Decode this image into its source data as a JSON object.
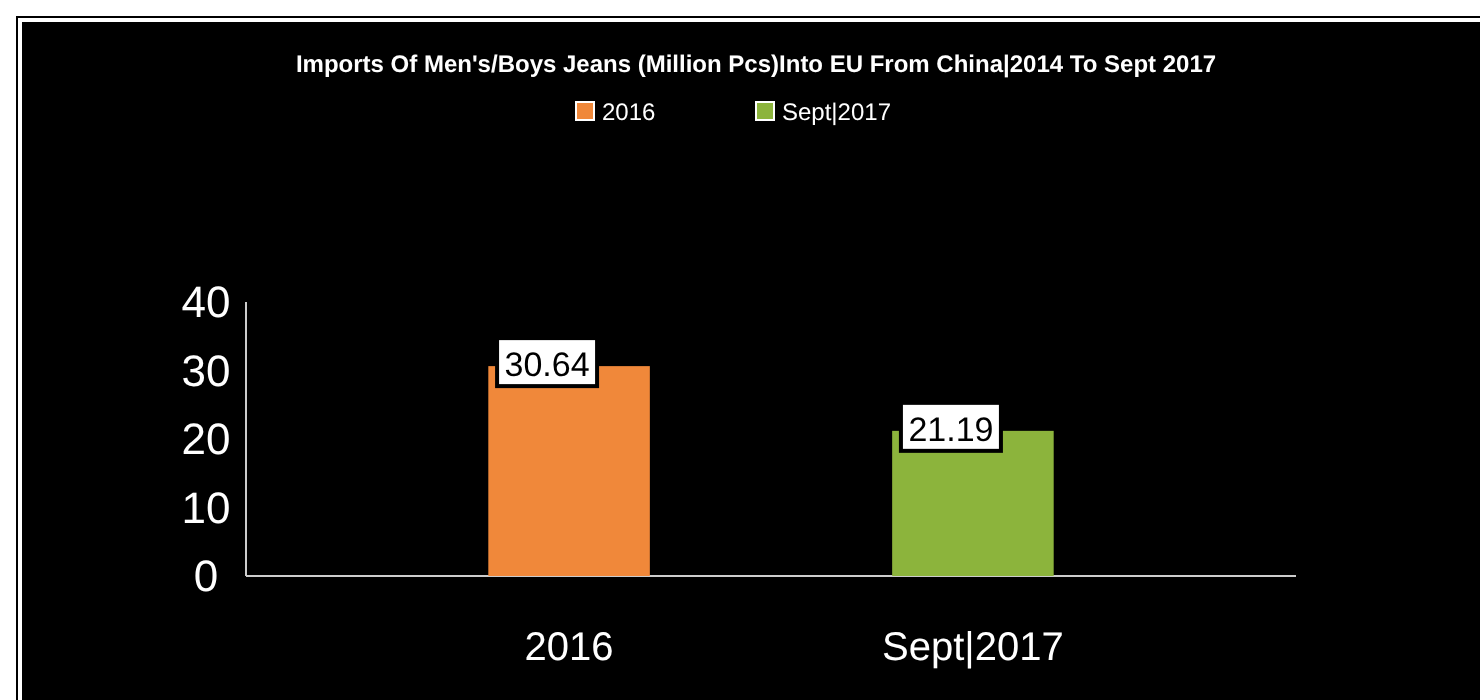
{
  "chart_data": {
    "type": "bar",
    "title": "Imports Of Men's/Boys Jeans (Million Pcs)Into EU From China|2014 To Sept 2017",
    "categories": [
      "2016",
      "Sept|2017"
    ],
    "series": [
      {
        "name": "2016",
        "color": "#f0883a",
        "values": [
          30.64,
          null
        ]
      },
      {
        "name": "Sept|2017",
        "color": "#8cb43c",
        "values": [
          null,
          21.19
        ]
      }
    ],
    "ylim": [
      0,
      40
    ],
    "yticks": [
      0,
      10,
      20,
      30,
      40
    ],
    "data_labels": true,
    "legend": "top",
    "grid": false
  }
}
